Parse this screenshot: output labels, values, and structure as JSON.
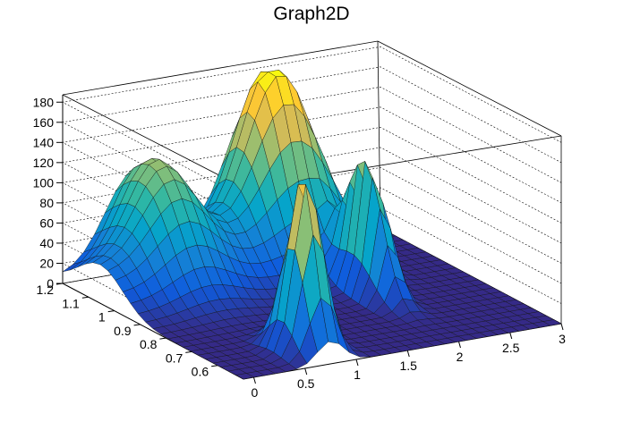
{
  "chart_data": {
    "type": "surface3d",
    "title": "Graph2D",
    "xlabel": "",
    "ylabel": "",
    "zlabel": "",
    "xlim": [
      -0.1,
      3.0
    ],
    "ylim": [
      0.5,
      1.2
    ],
    "zlim": [
      0,
      190
    ],
    "x_ticks": [
      "0",
      "0.5",
      "1",
      "1.5",
      "2",
      "2.5",
      "3"
    ],
    "y_ticks": [
      "0.6",
      "0.7",
      "0.8",
      "0.9",
      "1",
      "1.1",
      "1.2"
    ],
    "z_ticks": [
      "0",
      "20",
      "40",
      "60",
      "80",
      "100",
      "120",
      "140",
      "160",
      "180"
    ],
    "grid": true,
    "palette": [
      "#352a87",
      "#0f5cdd",
      "#1481d6",
      "#06a4ca",
      "#2eb7a4",
      "#87bf77",
      "#d1bb59",
      "#fec832",
      "#f9fb0e"
    ],
    "features": [
      {
        "x": 0.75,
        "y": 0.6,
        "height": 175,
        "spread_x": 0.18,
        "spread_y": 0.07
      },
      {
        "x": 2.0,
        "y": 0.85,
        "height": 140,
        "spread_x": 0.12,
        "spread_y": 0.1
      },
      {
        "x": 1.8,
        "y": 1.15,
        "height": 175,
        "spread_x": 0.45,
        "spread_y": 0.12
      },
      {
        "x": 0.6,
        "y": 1.15,
        "height": 100,
        "spread_x": 0.4,
        "spread_y": 0.18
      }
    ]
  }
}
